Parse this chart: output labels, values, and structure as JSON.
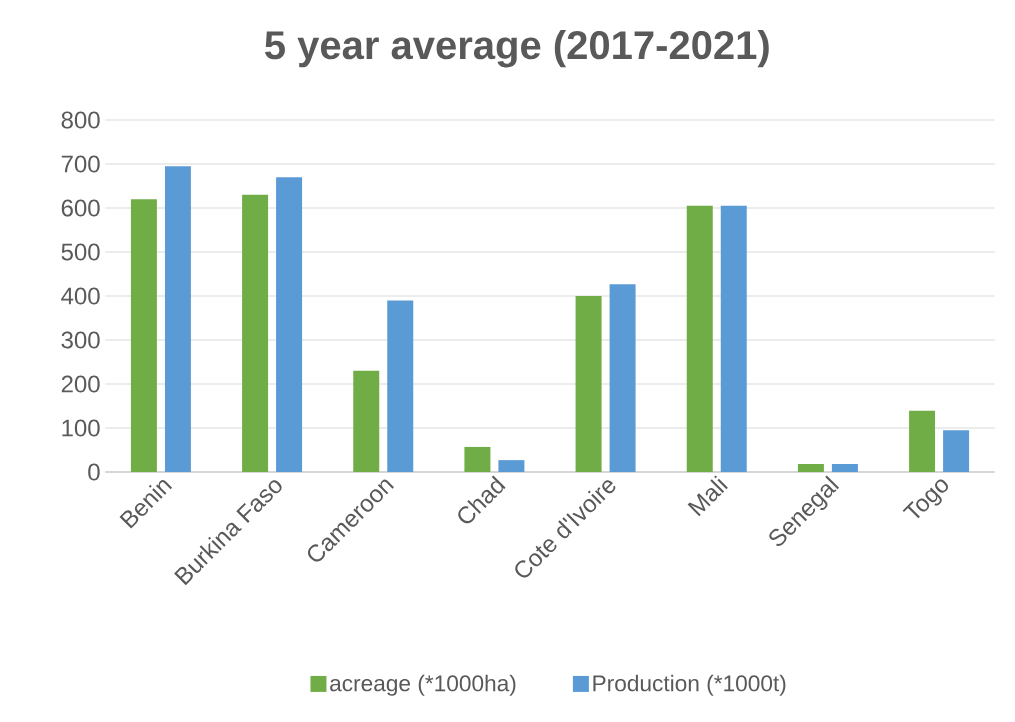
{
  "chart_data": {
    "type": "bar",
    "title": "5 year average (2017-2021)",
    "categories": [
      "Benin",
      "Burkina Faso",
      "Cameroon",
      "Chad",
      "Cote d'Ivoire",
      "Mali",
      "Senegal",
      "Togo"
    ],
    "series": [
      {
        "name": "acreage (*1000ha)",
        "color": "#70ad47",
        "values": [
          620,
          630,
          230,
          57,
          400,
          605,
          18,
          139
        ]
      },
      {
        "name": "Production (*1000t)",
        "color": "#5b9bd5",
        "values": [
          695,
          670,
          390,
          27,
          427,
          605,
          18,
          95
        ]
      }
    ],
    "ylim": [
      0,
      800
    ],
    "yticks": [
      0,
      100,
      200,
      300,
      400,
      500,
      600,
      700,
      800
    ],
    "grid": "y",
    "legend": "bottom"
  }
}
